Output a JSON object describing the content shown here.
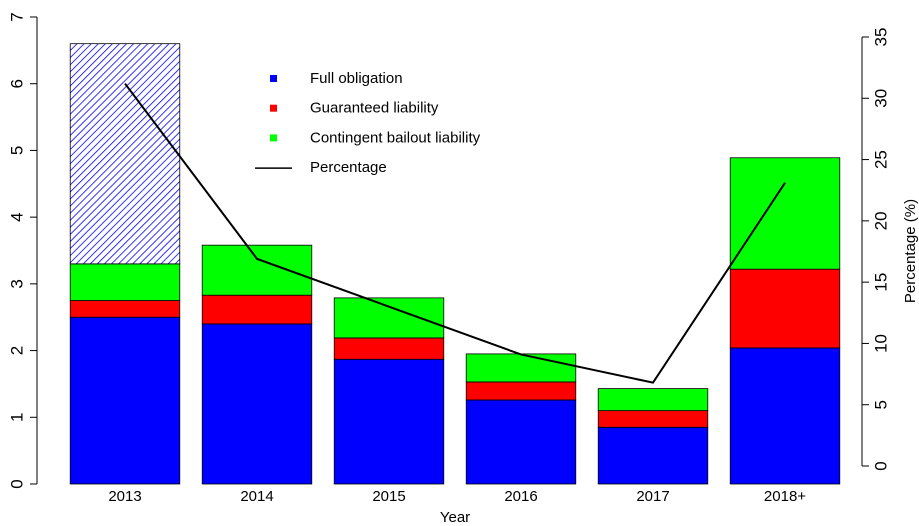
{
  "chart_data": {
    "type": "bar",
    "stacked": true,
    "categories": [
      "2013",
      "2014",
      "2015",
      "2016",
      "2017",
      "2018+"
    ],
    "x_label": "Year",
    "y2_label": "Percentage (%)",
    "ylim": [
      0,
      7
    ],
    "yticks": [
      0,
      1,
      2,
      3,
      4,
      5,
      6,
      7
    ],
    "y2lim": [
      0,
      35
    ],
    "y2ticks": [
      0,
      5,
      10,
      15,
      20,
      25,
      30,
      35
    ],
    "series": [
      {
        "name": "Full obligation",
        "color": "#0000ff",
        "values": [
          2.5,
          2.4,
          1.87,
          1.26,
          0.85,
          2.04
        ]
      },
      {
        "name": "Guaranteed liability",
        "color": "#ff0000",
        "values": [
          0.25,
          0.43,
          0.32,
          0.27,
          0.25,
          1.18
        ]
      },
      {
        "name": "Contingent bailout liability",
        "color": "#00ff00",
        "values": [
          0.55,
          0.75,
          0.6,
          0.42,
          0.33,
          1.67
        ]
      },
      {
        "color": "#0000ff",
        "pattern": "hatch",
        "values": [
          3.3,
          null,
          null,
          null,
          null,
          null
        ]
      },
      {
        "name": "Percentage",
        "type": "line",
        "axis": "y2",
        "color": "#000000",
        "values": [
          31.2,
          16.9,
          13.0,
          9.1,
          6.8,
          23.1
        ]
      }
    ]
  }
}
